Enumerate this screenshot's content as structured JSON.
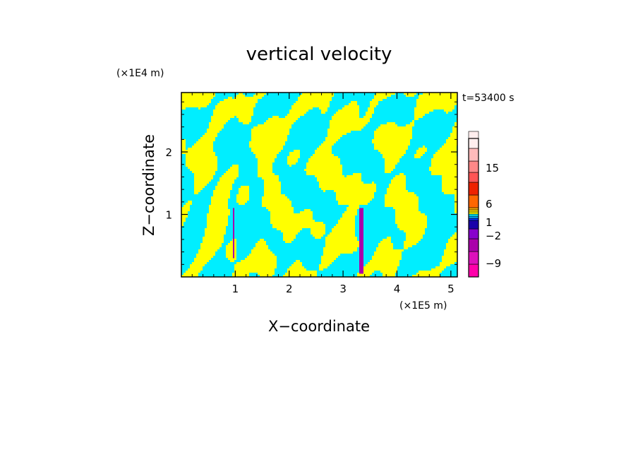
{
  "chart_data": {
    "type": "heatmap",
    "title": "vertical velocity",
    "xlabel": "X−coordinate",
    "ylabel": "Z−coordinate",
    "x_unit": "(×1E5 m)",
    "y_unit": "(×1E4 m)",
    "time_label": "t=53400 s",
    "xlim": [
      0,
      5.12
    ],
    "ylim": [
      0,
      2.95
    ],
    "x_ticks": [
      "1",
      "2",
      "3",
      "4",
      "5"
    ],
    "x_tick_values": [
      1,
      2,
      3,
      4,
      5
    ],
    "y_ticks": [
      "1",
      "2"
    ],
    "y_tick_values": [
      1,
      2
    ],
    "colorbar": {
      "labels": [
        "15",
        "6",
        "1",
        "−2",
        "−9"
      ],
      "label_values": [
        15,
        6,
        1,
        -2,
        -9
      ],
      "levels": [
        {
          "color": "#ff00aa"
        },
        {
          "color": "#dd11bb"
        },
        {
          "color": "#aa00aa"
        },
        {
          "color": "#8800cc"
        },
        {
          "color": "#1a00aa"
        },
        {
          "color": "#0033ff"
        },
        {
          "color": "#00aaff"
        },
        {
          "color": "#00eeff"
        },
        {
          "color": "#ffff00"
        },
        {
          "color": "#ffdd00"
        },
        {
          "color": "#ffaa00"
        },
        {
          "color": "#ff6600"
        },
        {
          "color": "#ee2200"
        },
        {
          "color": "#ff5555"
        },
        {
          "color": "#ff8888"
        },
        {
          "color": "#ffbbbb"
        },
        {
          "color": "#ffeeee"
        }
      ]
    },
    "field_colors": {
      "positive": "#ffff00",
      "negative": "#00eeff",
      "strong": "#aa00aa"
    }
  }
}
